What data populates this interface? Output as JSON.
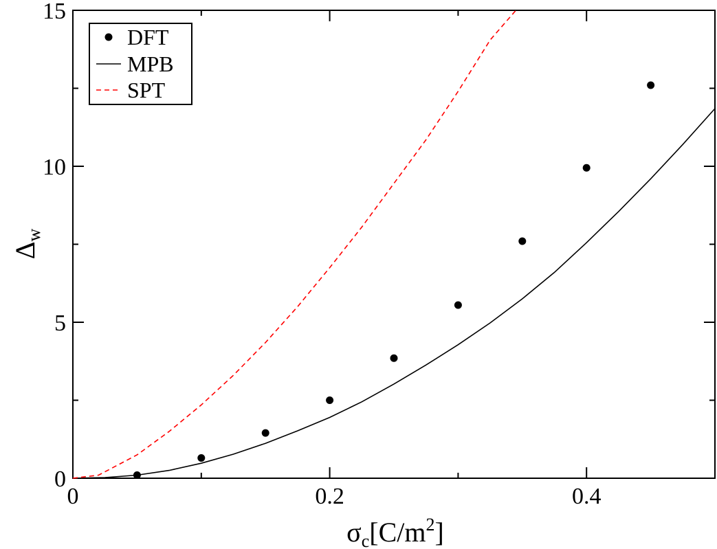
{
  "chart_data": {
    "type": "line",
    "title": "",
    "xlabel_main": "σ",
    "xlabel_sub": "c",
    "xlabel_unit_start": "[C/m",
    "xlabel_unit_sup": "2",
    "xlabel_unit_end": "]",
    "ylabel_main": "Δ",
    "ylabel_sub": "w",
    "xlim": [
      0,
      0.5
    ],
    "ylim": [
      0,
      15
    ],
    "x_ticks": [
      {
        "value": 0,
        "label": "0"
      },
      {
        "value": 0.2,
        "label": "0.2"
      },
      {
        "value": 0.4,
        "label": "0.4"
      }
    ],
    "x_minor_ticks": [
      0.1,
      0.3,
      0.5
    ],
    "y_ticks": [
      {
        "value": 0,
        "label": "0"
      },
      {
        "value": 5,
        "label": "5"
      },
      {
        "value": 10,
        "label": "10"
      },
      {
        "value": 15,
        "label": "15"
      }
    ],
    "y_minor_ticks": [
      2.5,
      7.5,
      12.5
    ],
    "legend_position": "top-left",
    "series": [
      {
        "name": "DFT",
        "kind": "scatter",
        "color": "#000000",
        "x": [
          0.05,
          0.1,
          0.15,
          0.2,
          0.25,
          0.3,
          0.35,
          0.4,
          0.45
        ],
        "y": [
          0.1,
          0.65,
          1.45,
          2.5,
          3.85,
          5.55,
          7.6,
          9.95,
          12.6
        ]
      },
      {
        "name": "MPB",
        "kind": "line",
        "color": "#000000",
        "dash": "solid",
        "x": [
          0,
          0.025,
          0.05,
          0.075,
          0.1,
          0.125,
          0.15,
          0.175,
          0.2,
          0.225,
          0.25,
          0.275,
          0.3,
          0.325,
          0.35,
          0.375,
          0.4,
          0.425,
          0.45,
          0.475,
          0.5
        ],
        "y": [
          0,
          0.02,
          0.1,
          0.25,
          0.48,
          0.77,
          1.12,
          1.52,
          1.95,
          2.45,
          3.02,
          3.63,
          4.28,
          4.98,
          5.75,
          6.6,
          7.55,
          8.55,
          9.6,
          10.7,
          11.85
        ]
      },
      {
        "name": "SPT",
        "kind": "line",
        "color": "#ff0000",
        "dash": "dashed",
        "x": [
          0,
          0.02,
          0.05,
          0.075,
          0.1,
          0.125,
          0.15,
          0.175,
          0.2,
          0.225,
          0.25,
          0.275,
          0.3,
          0.325,
          0.345
        ],
        "y": [
          0,
          0.1,
          0.75,
          1.5,
          2.35,
          3.3,
          4.35,
          5.5,
          6.75,
          8.05,
          9.45,
          10.85,
          12.4,
          14.05,
          15.0
        ]
      }
    ]
  }
}
